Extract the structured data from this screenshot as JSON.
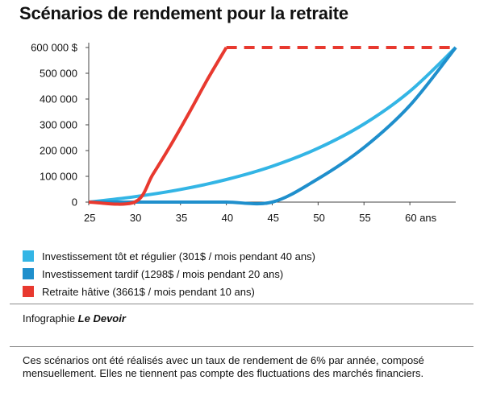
{
  "title": "Scénarios de rendement pour la retraite",
  "credit": {
    "prefix": "Infographie ",
    "source": "Le Devoir"
  },
  "note": "Ces scénarios ont été réalisés avec un taux de rendement de 6% par année, composé mensuellement. Elles ne tiennent pas compte des fluctuations des marchés financiers.",
  "chart_data": {
    "type": "line",
    "xlim": [
      25,
      65
    ],
    "ylim": [
      0,
      600000
    ],
    "x_ticks": [
      25,
      30,
      35,
      40,
      45,
      50,
      55,
      60
    ],
    "x_tick_labels": [
      "25",
      "30",
      "35",
      "40",
      "45",
      "50",
      "55",
      "60 ans"
    ],
    "y_ticks": [
      0,
      100000,
      200000,
      300000,
      400000,
      500000,
      600000
    ],
    "y_tick_labels": [
      "0",
      "100 000",
      "200 000",
      "300 000",
      "400 000",
      "500 000",
      "600 000 $"
    ],
    "grid": false,
    "legend_position": "bottom",
    "series": [
      {
        "name": "Investissement tôt et régulier (301$ / mois pendant 40 ans)",
        "color": "#33b5e5",
        "x": [
          25,
          30,
          35,
          40,
          45,
          50,
          55,
          60,
          65
        ],
        "y": [
          0,
          21000,
          49000,
          87500,
          139000,
          209000,
          303000,
          430000,
          600000
        ]
      },
      {
        "name": "Investissement tardif (1298$ / mois pendant 20 ans)",
        "color": "#1f8fcc",
        "x": [
          25,
          30,
          35,
          40,
          45,
          50,
          55,
          60,
          65
        ],
        "y": [
          0,
          0,
          0,
          0,
          0,
          90500,
          212000,
          375000,
          600000
        ]
      },
      {
        "name": "Retraite hâtive (3661$ / mois pendant 10 ans)",
        "color": "#e8392f",
        "x": [
          25,
          30,
          32,
          34,
          36,
          38,
          40
        ],
        "y": [
          0,
          0,
          108000,
          225000,
          350000,
          480000,
          600000
        ],
        "continuation": {
          "x": [
            40,
            65
          ],
          "y": [
            600000,
            600000
          ],
          "style": "dashed"
        }
      }
    ]
  }
}
